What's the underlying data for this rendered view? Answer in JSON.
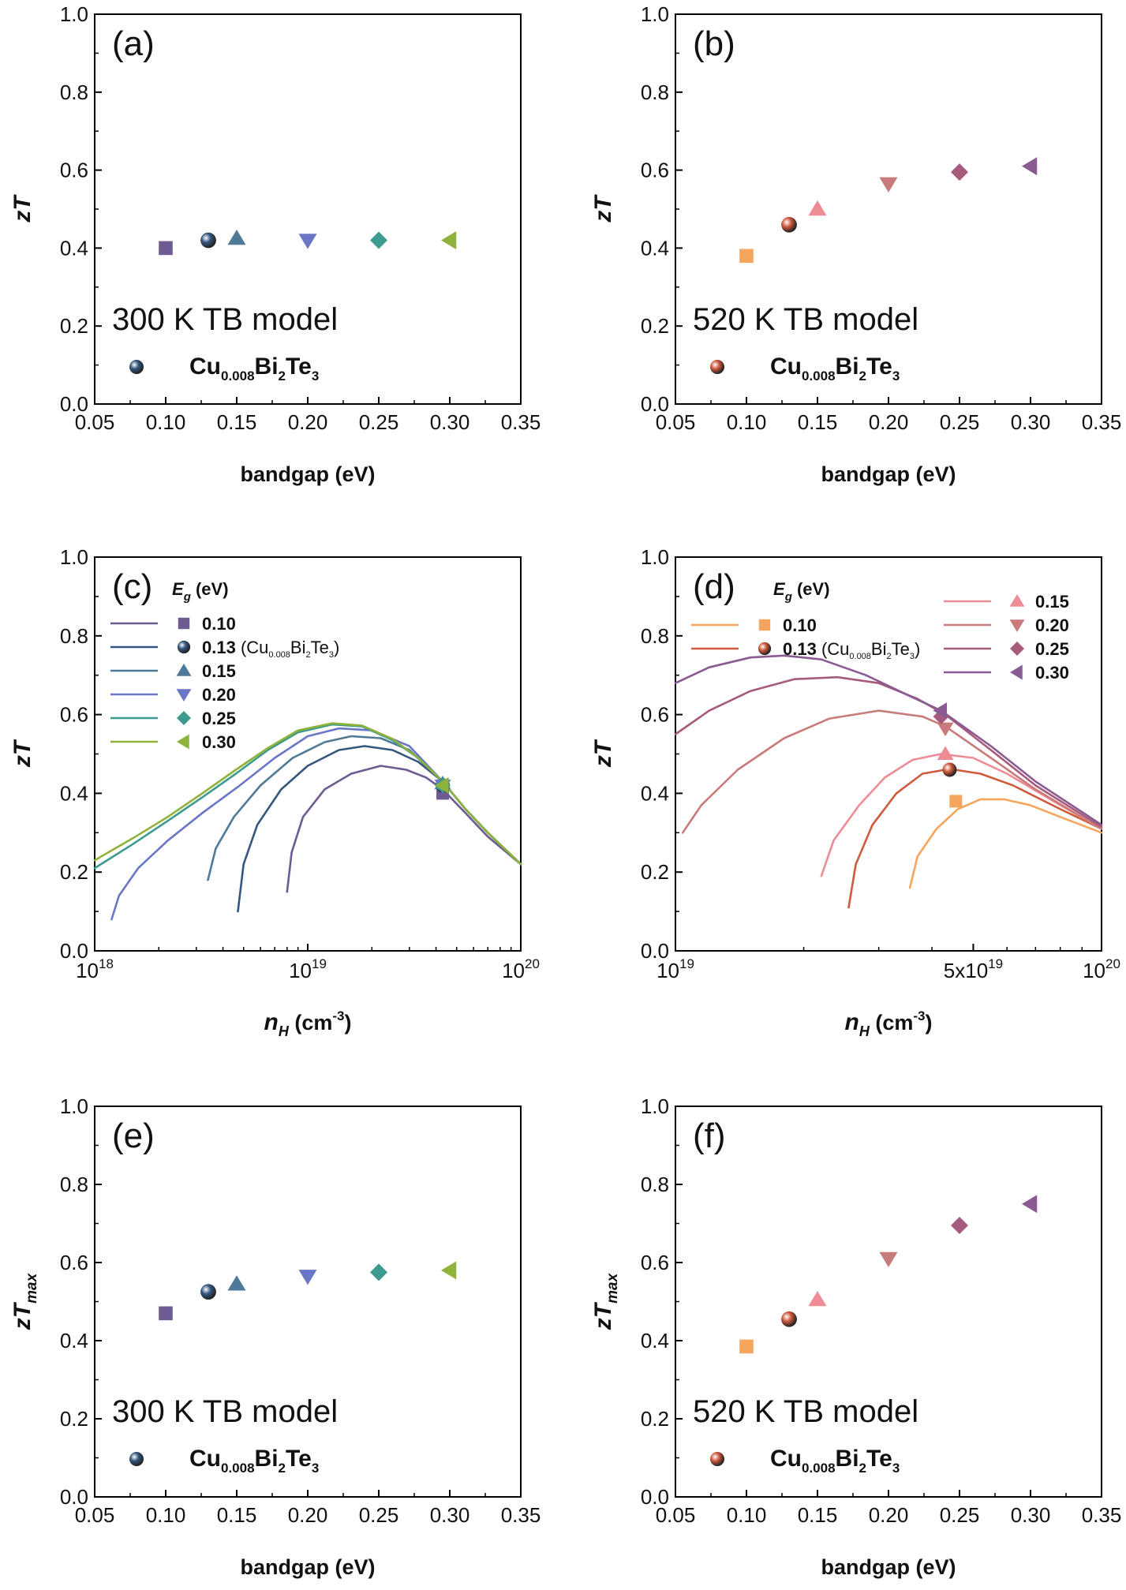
{
  "figure": {
    "description_free": true
  },
  "colors": {
    "g010_300": "#6d5b92",
    "g013_300": "#34577f",
    "g015_300": "#4f7a97",
    "g020_300": "#6a76c6",
    "g025_300": "#3d9a8e",
    "g030_300": "#8fb23b",
    "g010_520": "#f6a55c",
    "g013_520": "#cf5a3c",
    "g015_520": "#ee8c96",
    "g020_520": "#c97b7b",
    "g025_520": "#a65a7c",
    "g030_520": "#8a5b93"
  },
  "chart_data": [
    {
      "id": "a",
      "type": "scatter",
      "panel_label": "(a)",
      "annotation": "300 K TB model",
      "legend": {
        "sample_prefix": "Cu",
        "sample_sub1": "0.008",
        "sample_mid": "Bi",
        "sample_sub2": "2",
        "sample_end": "Te",
        "sample_sub3": "3",
        "color": "#34577f"
      },
      "xlabel": "bandgap (eV)",
      "ylabel_main": "zT",
      "ylabel_sub": "",
      "xlim": [
        0.05,
        0.35
      ],
      "ylim": [
        0.0,
        1.0
      ],
      "xticks": [
        "0.05",
        "0.10",
        "0.15",
        "0.20",
        "0.25",
        "0.30",
        "0.35"
      ],
      "yticks": [
        "0.0",
        "0.2",
        "0.4",
        "0.6",
        "0.8",
        "1.0"
      ],
      "points": [
        {
          "x": 0.1,
          "y": 0.4,
          "marker": "square",
          "color": "#6d5b92"
        },
        {
          "x": 0.13,
          "y": 0.42,
          "marker": "sphere",
          "color": "#34577f"
        },
        {
          "x": 0.15,
          "y": 0.425,
          "marker": "triangle-up",
          "color": "#4f7a97"
        },
        {
          "x": 0.2,
          "y": 0.42,
          "marker": "triangle-down",
          "color": "#6a76c6"
        },
        {
          "x": 0.25,
          "y": 0.42,
          "marker": "diamond",
          "color": "#3d9a8e"
        },
        {
          "x": 0.3,
          "y": 0.42,
          "marker": "triangle-left",
          "color": "#8fb23b"
        }
      ]
    },
    {
      "id": "b",
      "type": "scatter",
      "panel_label": "(b)",
      "annotation": "520 K TB model",
      "legend": {
        "sample_prefix": "Cu",
        "sample_sub1": "0.008",
        "sample_mid": "Bi",
        "sample_sub2": "2",
        "sample_end": "Te",
        "sample_sub3": "3",
        "color": "#cf5a3c"
      },
      "xlabel": "bandgap (eV)",
      "ylabel_main": "zT",
      "ylabel_sub": "",
      "xlim": [
        0.05,
        0.35
      ],
      "ylim": [
        0.0,
        1.0
      ],
      "xticks": [
        "0.05",
        "0.10",
        "0.15",
        "0.20",
        "0.25",
        "0.30",
        "0.35"
      ],
      "yticks": [
        "0.0",
        "0.2",
        "0.4",
        "0.6",
        "0.8",
        "1.0"
      ],
      "points": [
        {
          "x": 0.1,
          "y": 0.38,
          "marker": "square",
          "color": "#f6a55c"
        },
        {
          "x": 0.13,
          "y": 0.46,
          "marker": "sphere",
          "color": "#cf5a3c"
        },
        {
          "x": 0.15,
          "y": 0.5,
          "marker": "triangle-up",
          "color": "#ee8c96"
        },
        {
          "x": 0.2,
          "y": 0.565,
          "marker": "triangle-down",
          "color": "#c97b7b"
        },
        {
          "x": 0.25,
          "y": 0.595,
          "marker": "diamond",
          "color": "#a65a7c"
        },
        {
          "x": 0.3,
          "y": 0.61,
          "marker": "triangle-left",
          "color": "#8a5b93"
        }
      ]
    },
    {
      "id": "c",
      "type": "line",
      "panel_label": "(c)",
      "xlabel_main": "n",
      "xlabel_sub": "H",
      "xlabel_unit": "(cm",
      "xlabel_exp": "-3",
      "xlabel_close": ")",
      "ylabel_main": "zT",
      "ylabel_sub": "",
      "xscale": "log",
      "xlim": [
        1e+18,
        1e+20
      ],
      "ylim": [
        0.0,
        1.0
      ],
      "xticks": [
        {
          "v": 1e+18,
          "base": "10",
          "exp": "18"
        },
        {
          "v": 1e+19,
          "base": "10",
          "exp": "19"
        },
        {
          "v": 1e+20,
          "base": "10",
          "exp": "20"
        }
      ],
      "yticks": [
        "0.0",
        "0.2",
        "0.4",
        "0.6",
        "0.8",
        "1.0"
      ],
      "legend_title_main": "E",
      "legend_title_sub": "g",
      "legend_title_unit": "(eV)",
      "series": [
        {
          "name": "0.10",
          "extra": "",
          "color": "#6d5b92",
          "marker": "square",
          "x": [
            8e+18,
            8.4e+18,
            9.5e+18,
            1.2e+19,
            1.6e+19,
            2.2e+19,
            2.9e+19,
            3.6e+19,
            4.3e+19,
            5.5e+19,
            7e+19,
            1e+20
          ],
          "y": [
            0.15,
            0.25,
            0.34,
            0.41,
            0.45,
            0.47,
            0.46,
            0.44,
            0.41,
            0.35,
            0.29,
            0.22
          ],
          "marker_point": [
            4.3e+19,
            0.4
          ]
        },
        {
          "name": "0.13",
          "extra": " (Cu0.008Bi2Te3)",
          "color": "#34577f",
          "marker": "sphere",
          "x": [
            4.7e+18,
            5e+18,
            5.8e+18,
            7.5e+18,
            1e+19,
            1.4e+19,
            1.85e+19,
            2.5e+19,
            3.3e+19,
            4.3e+19,
            5.5e+19,
            7e+19,
            1e+20
          ],
          "y": [
            0.1,
            0.22,
            0.32,
            0.41,
            0.47,
            0.51,
            0.52,
            0.51,
            0.48,
            0.43,
            0.36,
            0.3,
            0.22
          ],
          "marker_point": [
            4.3e+19,
            0.42
          ]
        },
        {
          "name": "0.15",
          "extra": "",
          "color": "#4f7a97",
          "marker": "triangle-up",
          "x": [
            3.4e+18,
            3.7e+18,
            4.5e+18,
            6e+18,
            8.5e+18,
            1.2e+19,
            1.6e+19,
            2.2e+19,
            3e+19,
            4.3e+19,
            5.5e+19,
            7e+19,
            1e+20
          ],
          "y": [
            0.18,
            0.26,
            0.34,
            0.42,
            0.49,
            0.53,
            0.545,
            0.54,
            0.51,
            0.43,
            0.36,
            0.3,
            0.22
          ],
          "marker_point": [
            4.3e+19,
            0.425
          ]
        },
        {
          "name": "0.20",
          "extra": "",
          "color": "#6a76c6",
          "marker": "triangle-down",
          "x": [
            1.2e+18,
            1.3e+18,
            1.6e+18,
            2.2e+18,
            3.2e+18,
            4.8e+18,
            7e+18,
            1e+19,
            1.4e+19,
            2e+19,
            3e+19,
            4.3e+19,
            5.5e+19,
            7e+19,
            1e+20
          ],
          "y": [
            0.08,
            0.14,
            0.21,
            0.28,
            0.35,
            0.42,
            0.49,
            0.545,
            0.565,
            0.56,
            0.52,
            0.43,
            0.36,
            0.3,
            0.22
          ],
          "marker_point": [
            4.3e+19,
            0.42
          ]
        },
        {
          "name": "0.25",
          "extra": "",
          "color": "#3d9a8e",
          "marker": "diamond",
          "x": [
            1e+18,
            1.5e+18,
            2.2e+18,
            3.2e+18,
            4.6e+18,
            6.5e+18,
            9e+18,
            1.3e+19,
            1.8e+19,
            2.5e+19,
            3.3e+19,
            4.3e+19,
            5.5e+19,
            7e+19,
            1e+20
          ],
          "y": [
            0.21,
            0.27,
            0.33,
            0.39,
            0.45,
            0.51,
            0.555,
            0.575,
            0.57,
            0.535,
            0.49,
            0.43,
            0.36,
            0.3,
            0.22
          ],
          "marker_point": [
            4.3e+19,
            0.42
          ]
        },
        {
          "name": "0.30",
          "extra": "",
          "color": "#8fb23b",
          "marker": "triangle-left",
          "x": [
            1e+18,
            1.5e+18,
            2.2e+18,
            3.2e+18,
            4.6e+18,
            6.5e+18,
            9e+18,
            1.3e+19,
            1.8e+19,
            2.5e+19,
            3.3e+19,
            4.3e+19,
            5.5e+19,
            7e+19,
            1e+20
          ],
          "y": [
            0.23,
            0.285,
            0.34,
            0.4,
            0.46,
            0.515,
            0.56,
            0.578,
            0.572,
            0.538,
            0.49,
            0.43,
            0.36,
            0.3,
            0.22
          ],
          "marker_point": [
            4.3e+19,
            0.42
          ]
        }
      ]
    },
    {
      "id": "d",
      "type": "line",
      "panel_label": "(d)",
      "xlabel_main": "n",
      "xlabel_sub": "H",
      "xlabel_unit": "(cm",
      "xlabel_exp": "-3",
      "xlabel_close": ")",
      "ylabel_main": "zT",
      "ylabel_sub": "",
      "xscale": "log",
      "xlim": [
        1e+19,
        1e+20
      ],
      "ylim": [
        0.0,
        1.0
      ],
      "xticks": [
        {
          "v": 1e+19,
          "base": "10",
          "exp": "19"
        },
        {
          "v": 5e+19,
          "base": "5x10",
          "exp": "19"
        },
        {
          "v": 1e+20,
          "base": "10",
          "exp": "20"
        }
      ],
      "yticks": [
        "0.0",
        "0.2",
        "0.4",
        "0.6",
        "0.8",
        "1.0"
      ],
      "legend_title_main": "E",
      "legend_title_sub": "g",
      "legend_title_unit": "(eV)",
      "series": [
        {
          "name": "0.10",
          "extra": "",
          "color": "#f6a55c",
          "marker": "square",
          "x": [
            3.55e+19,
            3.7e+19,
            4.1e+19,
            4.6e+19,
            5.2e+19,
            5.9e+19,
            6.8e+19,
            8e+19,
            1e+20
          ],
          "y": [
            0.16,
            0.24,
            0.31,
            0.36,
            0.385,
            0.385,
            0.37,
            0.34,
            0.3
          ],
          "marker_point": [
            4.55e+19,
            0.38
          ]
        },
        {
          "name": "0.13",
          "extra": " (Cu0.008Bi2Te3)",
          "color": "#cf5a3c",
          "marker": "sphere",
          "x": [
            2.55e+19,
            2.65e+19,
            2.9e+19,
            3.3e+19,
            3.8e+19,
            4.4e+19,
            5.2e+19,
            6.2e+19,
            8e+19,
            1e+20
          ],
          "y": [
            0.11,
            0.22,
            0.32,
            0.4,
            0.45,
            0.462,
            0.45,
            0.42,
            0.36,
            0.31
          ],
          "marker_point": [
            4.4e+19,
            0.46
          ]
        },
        {
          "name": "0.15",
          "extra": "",
          "color": "#ee8c96",
          "marker": "triangle-up",
          "x": [
            2.2e+19,
            2.35e+19,
            2.7e+19,
            3.1e+19,
            3.6e+19,
            4.2e+19,
            5e+19,
            6e+19,
            8e+19,
            1e+20
          ],
          "y": [
            0.19,
            0.28,
            0.37,
            0.44,
            0.485,
            0.5,
            0.49,
            0.45,
            0.37,
            0.31
          ],
          "marker_point": [
            4.3e+19,
            0.5
          ]
        },
        {
          "name": "0.20",
          "extra": "",
          "color": "#c97b7b",
          "marker": "triangle-down",
          "x": [
            1.04e+19,
            1.15e+19,
            1.4e+19,
            1.8e+19,
            2.3e+19,
            3e+19,
            3.8e+19,
            4.3e+19,
            5.5e+19,
            7e+19,
            1e+20
          ],
          "y": [
            0.3,
            0.37,
            0.46,
            0.54,
            0.59,
            0.61,
            0.595,
            0.57,
            0.49,
            0.41,
            0.31
          ],
          "marker_point": [
            4.3e+19,
            0.565
          ]
        },
        {
          "name": "0.25",
          "extra": "",
          "color": "#a65a7c",
          "marker": "diamond",
          "x": [
            1e+19,
            1.2e+19,
            1.5e+19,
            1.9e+19,
            2.4e+19,
            3e+19,
            3.7e+19,
            4.3e+19,
            5.5e+19,
            7e+19,
            1e+20
          ],
          "y": [
            0.55,
            0.61,
            0.66,
            0.69,
            0.695,
            0.68,
            0.64,
            0.6,
            0.51,
            0.42,
            0.315
          ],
          "marker_point": [
            4.2e+19,
            0.595
          ]
        },
        {
          "name": "0.30",
          "extra": "",
          "color": "#8a5b93",
          "marker": "triangle-left",
          "x": [
            1e+19,
            1.2e+19,
            1.5e+19,
            1.8e+19,
            2.2e+19,
            2.8e+19,
            3.5e+19,
            4.2e+19,
            5.5e+19,
            7e+19,
            1e+20
          ],
          "y": [
            0.68,
            0.72,
            0.745,
            0.75,
            0.74,
            0.7,
            0.65,
            0.61,
            0.52,
            0.43,
            0.32
          ],
          "marker_point": [
            4.2e+19,
            0.61
          ]
        }
      ]
    },
    {
      "id": "e",
      "type": "scatter",
      "panel_label": "(e)",
      "annotation": "300 K TB model",
      "legend": {
        "sample_prefix": "Cu",
        "sample_sub1": "0.008",
        "sample_mid": "Bi",
        "sample_sub2": "2",
        "sample_end": "Te",
        "sample_sub3": "3",
        "color": "#34577f"
      },
      "xlabel": "bandgap (eV)",
      "ylabel_main": "zT",
      "ylabel_sub": "max",
      "xlim": [
        0.05,
        0.35
      ],
      "ylim": [
        0.0,
        1.0
      ],
      "xticks": [
        "0.05",
        "0.10",
        "0.15",
        "0.20",
        "0.25",
        "0.30",
        "0.35"
      ],
      "yticks": [
        "0.0",
        "0.2",
        "0.4",
        "0.6",
        "0.8",
        "1.0"
      ],
      "points": [
        {
          "x": 0.1,
          "y": 0.47,
          "marker": "square",
          "color": "#6d5b92"
        },
        {
          "x": 0.13,
          "y": 0.525,
          "marker": "sphere",
          "color": "#34577f"
        },
        {
          "x": 0.15,
          "y": 0.545,
          "marker": "triangle-up",
          "color": "#4f7a97"
        },
        {
          "x": 0.2,
          "y": 0.565,
          "marker": "triangle-down",
          "color": "#6a76c6"
        },
        {
          "x": 0.25,
          "y": 0.575,
          "marker": "diamond",
          "color": "#3d9a8e"
        },
        {
          "x": 0.3,
          "y": 0.58,
          "marker": "triangle-left",
          "color": "#8fb23b"
        }
      ]
    },
    {
      "id": "f",
      "type": "scatter",
      "panel_label": "(f)",
      "annotation": "520 K TB model",
      "legend": {
        "sample_prefix": "Cu",
        "sample_sub1": "0.008",
        "sample_mid": "Bi",
        "sample_sub2": "2",
        "sample_end": "Te",
        "sample_sub3": "3",
        "color": "#cf5a3c"
      },
      "xlabel": "bandgap (eV)",
      "ylabel_main": "zT",
      "ylabel_sub": "max",
      "xlim": [
        0.05,
        0.35
      ],
      "ylim": [
        0.0,
        1.0
      ],
      "xticks": [
        "0.05",
        "0.10",
        "0.15",
        "0.20",
        "0.25",
        "0.30",
        "0.35"
      ],
      "yticks": [
        "0.0",
        "0.2",
        "0.4",
        "0.6",
        "0.8",
        "1.0"
      ],
      "points": [
        {
          "x": 0.1,
          "y": 0.385,
          "marker": "square",
          "color": "#f6a55c"
        },
        {
          "x": 0.13,
          "y": 0.455,
          "marker": "sphere",
          "color": "#cf5a3c"
        },
        {
          "x": 0.15,
          "y": 0.505,
          "marker": "triangle-up",
          "color": "#ee8c96"
        },
        {
          "x": 0.2,
          "y": 0.61,
          "marker": "triangle-down",
          "color": "#c97b7b"
        },
        {
          "x": 0.25,
          "y": 0.695,
          "marker": "diamond",
          "color": "#a65a7c"
        },
        {
          "x": 0.3,
          "y": 0.75,
          "marker": "triangle-left",
          "color": "#8a5b93"
        }
      ]
    }
  ]
}
